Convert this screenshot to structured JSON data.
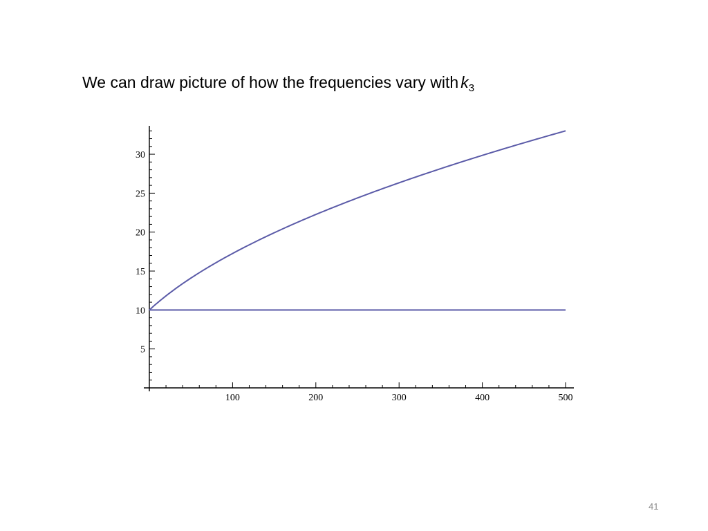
{
  "slide": {
    "heading_text": "We can draw picture of how the frequencies vary with",
    "heading_var": "k",
    "heading_sub": "3",
    "page_number": "41"
  },
  "chart_data": {
    "type": "line",
    "title": "",
    "xlabel": "",
    "ylabel": "",
    "xlim": [
      0,
      500
    ],
    "ylim": [
      0,
      34
    ],
    "x_ticks": [
      100,
      200,
      300,
      400,
      500
    ],
    "y_ticks": [
      5,
      10,
      15,
      20,
      25,
      30
    ],
    "grid": false,
    "line_color": "#5b5ba8",
    "series": [
      {
        "x": [
          0,
          25,
          50,
          75,
          100,
          150,
          200,
          250,
          300,
          350,
          400,
          450,
          500
        ],
        "y": [
          10,
          12.6,
          14.7,
          16.4,
          17.9,
          20.1,
          22.2,
          24.1,
          25.8,
          27.5,
          29.2,
          31.3,
          33
        ]
      },
      {
        "x": [
          0,
          500
        ],
        "y": [
          10,
          10
        ]
      }
    ]
  }
}
